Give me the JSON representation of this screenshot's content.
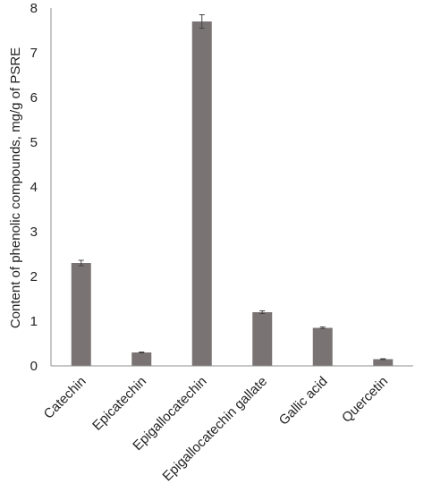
{
  "chart_data": {
    "type": "bar",
    "title": "",
    "xlabel": "",
    "ylabel": "Content of phenolic compounds, mg/g of PSRE",
    "categories": [
      "Catechin",
      "Epicatechin",
      "Epigallocatechin",
      "Epigallocatechin gallate",
      "Gallic acid",
      "Quercetin"
    ],
    "values": [
      2.3,
      0.3,
      7.7,
      1.2,
      0.85,
      0.15
    ],
    "errors": [
      0.06,
      0.01,
      0.15,
      0.03,
      0.02,
      0.01
    ],
    "ylim": [
      0,
      8
    ],
    "yticks": [
      "0",
      "1",
      "2",
      "3",
      "4",
      "5",
      "6",
      "7",
      "8"
    ],
    "grid": false,
    "legend": "none",
    "colors": {
      "bar": "#7a7374",
      "axis": "#8c8c8c",
      "errorbar": "#444444"
    }
  }
}
